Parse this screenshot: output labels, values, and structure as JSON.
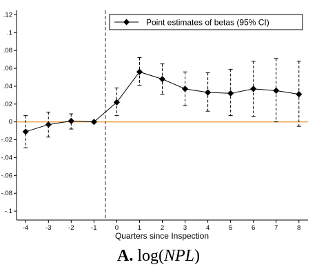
{
  "chart_data": {
    "type": "line",
    "title": "",
    "xlabel": "Quarters since Inspection",
    "ylabel": "",
    "x": [
      -4,
      -3,
      -2,
      -1,
      0,
      1,
      2,
      3,
      4,
      5,
      6,
      7,
      8
    ],
    "xlim": [
      -4.4,
      8.4
    ],
    "ylim": [
      -0.11,
      0.125
    ],
    "yticks": [
      0.12,
      0.1,
      0.08,
      0.06,
      0.04,
      0.02,
      0,
      -0.02,
      -0.04,
      -0.06,
      -0.08,
      -0.1
    ],
    "ytick_labels": [
      ".12",
      ".1",
      ".08",
      ".06",
      ".04",
      ".02",
      "0",
      "-.02",
      "-.04",
      "-.06",
      "-.08",
      "-.1"
    ],
    "xticks": [
      -4,
      -3,
      -2,
      -1,
      0,
      1,
      2,
      3,
      4,
      5,
      6,
      7,
      8
    ],
    "xtick_labels": [
      "-4",
      "-3",
      "-2",
      "-1",
      "0",
      "1",
      "2",
      "3",
      "4",
      "5",
      "6",
      "7",
      "8"
    ],
    "series": [
      {
        "name": "Point estimates of betas (95% CI)",
        "values": [
          -0.011,
          -0.003,
          0.001,
          0.0,
          0.022,
          0.056,
          0.048,
          0.037,
          0.033,
          0.032,
          0.037,
          0.035,
          0.031
        ],
        "ci_lower": [
          -0.029,
          -0.017,
          -0.008,
          0.0,
          0.007,
          0.041,
          0.031,
          0.018,
          0.012,
          0.007,
          0.006,
          0.0,
          -0.005
        ],
        "ci_upper": [
          0.007,
          0.011,
          0.009,
          0.0,
          0.038,
          0.072,
          0.065,
          0.056,
          0.055,
          0.059,
          0.068,
          0.071,
          0.068
        ]
      }
    ],
    "reference_lines": {
      "horizontal_y": 0,
      "vertical_x": -0.5
    },
    "legend_position": "top-right",
    "grid": false,
    "colors": {
      "series": "#000000",
      "zero_line": "#E8A33B",
      "event_line": "#D9406B"
    }
  },
  "caption": {
    "letter": "A.",
    "func": "log(",
    "var": "NPL",
    "close": ")"
  }
}
